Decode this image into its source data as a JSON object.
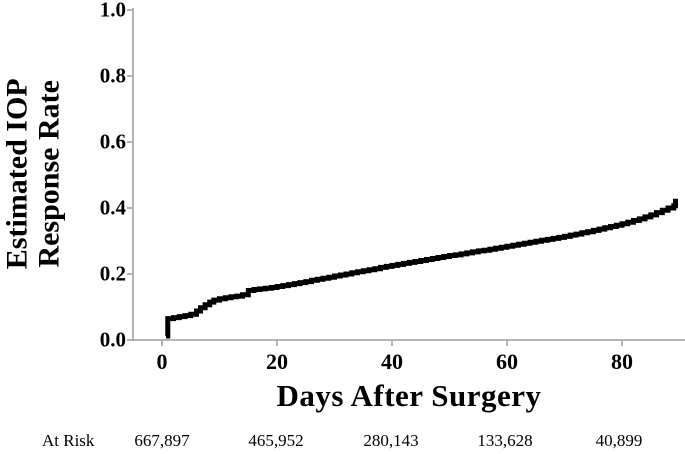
{
  "figure": {
    "background": "#ffffff",
    "axis_color": "#ababab",
    "curve_color": "#000000",
    "text_color": "#000000"
  },
  "chart_data": {
    "type": "line",
    "style": "kaplan-meier-step-curve",
    "title": "",
    "xlabel": "Days After Surgery",
    "ylabel": "Estimated IOP Response Rate",
    "ylabel_lines": [
      "Estimated IOP",
      "Response Rate"
    ],
    "xlim": [
      0,
      92
    ],
    "ylim": [
      0,
      1.0
    ],
    "xticks": [
      0,
      20,
      40,
      60,
      80
    ],
    "xtick_labels": [
      "0",
      "20",
      "40",
      "60",
      "80"
    ],
    "ytick_values": [
      1.0,
      0.8,
      0.6,
      0.4,
      0.2,
      0.0
    ],
    "ytick_labels": [
      "1.0",
      "0.8",
      "0.6",
      "0.4",
      "0.2",
      "0.0"
    ],
    "grid": false,
    "legend": false,
    "series": [
      {
        "name": "Estimated IOP response rate",
        "color": "#000000",
        "steps_day_value": [
          [
            0.7,
            0.012
          ],
          [
            1,
            0.065
          ],
          [
            2,
            0.068
          ],
          [
            3,
            0.071
          ],
          [
            4,
            0.074
          ],
          [
            5,
            0.078
          ],
          [
            6,
            0.088
          ],
          [
            6.7,
            0.098
          ],
          [
            7.5,
            0.107
          ],
          [
            8.3,
            0.115
          ],
          [
            9,
            0.121
          ],
          [
            10,
            0.125
          ],
          [
            11,
            0.128
          ],
          [
            12,
            0.131
          ],
          [
            13,
            0.133
          ],
          [
            14,
            0.137
          ],
          [
            15,
            0.15
          ],
          [
            16,
            0.153
          ],
          [
            17,
            0.155
          ],
          [
            18,
            0.157
          ],
          [
            19,
            0.159
          ],
          [
            20,
            0.162
          ],
          [
            21,
            0.165
          ],
          [
            22,
            0.168
          ],
          [
            23,
            0.171
          ],
          [
            24,
            0.174
          ],
          [
            25,
            0.177
          ],
          [
            26,
            0.181
          ],
          [
            27,
            0.184
          ],
          [
            28,
            0.187
          ],
          [
            29,
            0.19
          ],
          [
            30,
            0.194
          ],
          [
            31,
            0.197
          ],
          [
            32,
            0.2
          ],
          [
            33,
            0.204
          ],
          [
            34,
            0.207
          ],
          [
            35,
            0.21
          ],
          [
            36,
            0.213
          ],
          [
            37,
            0.216
          ],
          [
            38,
            0.22
          ],
          [
            39,
            0.223
          ],
          [
            40,
            0.226
          ],
          [
            41,
            0.229
          ],
          [
            42,
            0.232
          ],
          [
            43,
            0.235
          ],
          [
            44,
            0.238
          ],
          [
            45,
            0.241
          ],
          [
            46,
            0.244
          ],
          [
            47,
            0.247
          ],
          [
            48,
            0.25
          ],
          [
            49,
            0.253
          ],
          [
            50,
            0.256
          ],
          [
            51,
            0.258
          ],
          [
            52,
            0.261
          ],
          [
            53,
            0.264
          ],
          [
            54,
            0.267
          ],
          [
            55,
            0.27
          ],
          [
            56,
            0.272
          ],
          [
            57,
            0.275
          ],
          [
            58,
            0.278
          ],
          [
            59,
            0.281
          ],
          [
            60,
            0.284
          ],
          [
            61,
            0.287
          ],
          [
            62,
            0.29
          ],
          [
            63,
            0.293
          ],
          [
            64,
            0.296
          ],
          [
            65,
            0.299
          ],
          [
            66,
            0.302
          ],
          [
            67,
            0.305
          ],
          [
            68,
            0.308
          ],
          [
            69,
            0.311
          ],
          [
            70,
            0.314
          ],
          [
            71,
            0.318
          ],
          [
            72,
            0.321
          ],
          [
            73,
            0.325
          ],
          [
            74,
            0.328
          ],
          [
            75,
            0.332
          ],
          [
            76,
            0.336
          ],
          [
            77,
            0.34
          ],
          [
            78,
            0.344
          ],
          [
            79,
            0.348
          ],
          [
            80,
            0.352
          ],
          [
            81,
            0.357
          ],
          [
            82,
            0.362
          ],
          [
            83,
            0.367
          ],
          [
            84,
            0.373
          ],
          [
            85,
            0.379
          ],
          [
            86,
            0.386
          ],
          [
            87,
            0.393
          ],
          [
            88,
            0.4
          ],
          [
            89,
            0.407
          ],
          [
            89.3,
            0.428
          ]
        ]
      }
    ],
    "at_risk": {
      "label": "At Risk",
      "days": [
        0,
        20,
        40,
        60,
        80
      ],
      "values": [
        "667,897",
        "465,952",
        "280,143",
        "133,628",
        "40,899"
      ]
    }
  }
}
